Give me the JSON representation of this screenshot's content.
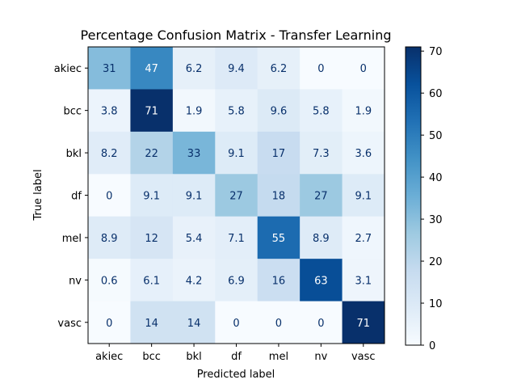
{
  "chart_data": {
    "type": "heatmap",
    "title": "Percentage Confusion Matrix - Transfer Learning",
    "xlabel": "Predicted label",
    "ylabel": "True label",
    "x_categories": [
      "akiec",
      "bcc",
      "bkl",
      "df",
      "mel",
      "nv",
      "vasc"
    ],
    "y_categories": [
      "akiec",
      "bcc",
      "bkl",
      "df",
      "mel",
      "nv",
      "vasc"
    ],
    "values": [
      [
        31,
        47,
        6.2,
        9.4,
        6.2,
        0,
        0
      ],
      [
        3.8,
        71,
        1.9,
        5.8,
        9.6,
        5.8,
        1.9
      ],
      [
        8.2,
        22,
        33,
        9.1,
        17,
        7.3,
        3.6
      ],
      [
        0,
        9.1,
        9.1,
        27,
        18,
        27,
        9.1
      ],
      [
        8.9,
        12,
        5.4,
        7.1,
        55,
        8.9,
        2.7
      ],
      [
        0.6,
        6.1,
        4.2,
        6.9,
        16,
        63,
        3.1
      ],
      [
        0,
        14,
        14,
        0,
        0,
        0,
        71
      ]
    ],
    "colormap": "Blues",
    "color_range": [
      0,
      71
    ],
    "colorbar_ticks": [
      0,
      10,
      20,
      30,
      40,
      50,
      60,
      70
    ],
    "colors": {
      "low": "#f7fbff",
      "high": "#08306b",
      "text_dark": "#08306b",
      "text_light": "#ffffff"
    }
  }
}
